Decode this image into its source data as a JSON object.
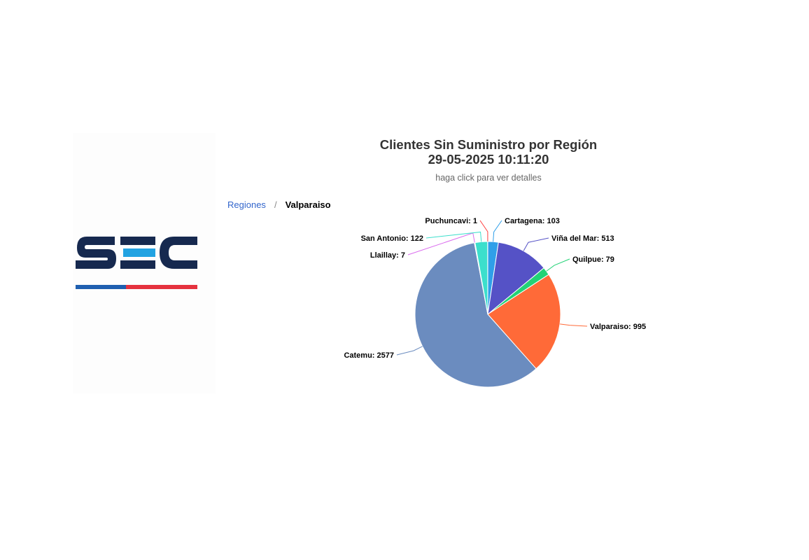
{
  "colors": {
    "logo_navy": "#16294f",
    "logo_cyan": "#22a3e2",
    "logo_blue": "#1f5fb0",
    "logo_red": "#e5323e"
  },
  "breadcrumb": {
    "root_label": "Regiones",
    "separator": "/",
    "current_label": "Valparaiso"
  },
  "chart_data": {
    "type": "pie",
    "title": "Clientes Sin Suministro por Región",
    "title_date": "29-05-2025 10:11:20",
    "subtitle": "haga click para ver detalles",
    "slices": [
      {
        "name": "Cartagena",
        "value": 103,
        "color": "#2f9fe9"
      },
      {
        "name": "Viña del Mar",
        "value": 513,
        "color": "#5552c6"
      },
      {
        "name": "Quilpue",
        "value": 79,
        "color": "#22d276"
      },
      {
        "name": "Valparaiso",
        "value": 995,
        "color": "#ff6a38"
      },
      {
        "name": "Catemu",
        "value": 2577,
        "color": "#6b8cbf"
      },
      {
        "name": "Llaillay",
        "value": 7,
        "color": "#da6bee"
      },
      {
        "name": "San Antonio",
        "value": 122,
        "color": "#3cdfcc"
      },
      {
        "name": "Puchuncavi",
        "value": 1,
        "color": "#ff3d3d"
      }
    ]
  }
}
